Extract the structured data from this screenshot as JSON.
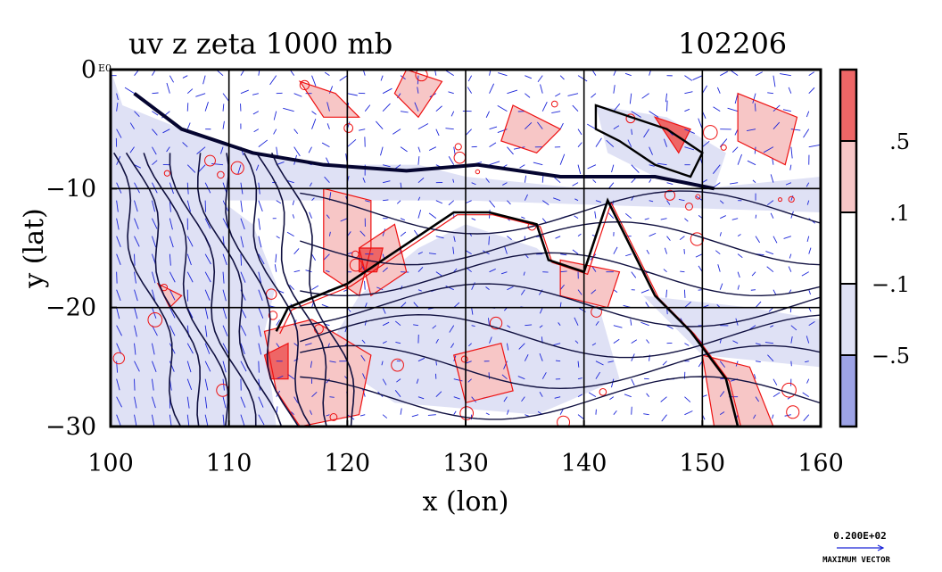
{
  "header": {
    "title": "uv z zeta 1000 mb",
    "code": "102206"
  },
  "chart_data": {
    "type": "heatmap",
    "title": "uv z zeta 1000 mb",
    "time_code": "102206",
    "xlabel": "x (lon)",
    "ylabel": "y (lat)",
    "xlim": [
      100,
      160
    ],
    "ylim": [
      -30,
      0
    ],
    "x_ticks": [
      100,
      110,
      120,
      130,
      140,
      150,
      160
    ],
    "y_ticks": [
      0,
      -10,
      -20,
      -30
    ],
    "x_tick_labels": [
      "100",
      "110",
      "120",
      "130",
      "140",
      "150",
      "160"
    ],
    "y_tick_labels": [
      "0",
      "−10",
      "−20",
      "−30"
    ],
    "y_top_label_suffix": "E0",
    "grid": true,
    "colorbar": {
      "levels": [
        -0.5,
        -0.1,
        0.1,
        0.5
      ],
      "labels": [
        ".5",
        ".1",
        "−.1",
        "−.5"
      ],
      "colors": [
        "#ee6666",
        "#f7c6c6",
        "#ffffff",
        "#dfe1f5",
        "#9da3e6"
      ]
    },
    "series": [
      {
        "name": "",
        "kind": "geopotential height contours",
        "color": "#101040"
      },
      {
        "name": "",
        "kind": "vorticity contour",
        "color": "#ee1111"
      },
      {
        "name": "",
        "kind": "wind vectors",
        "color": "#1a24d8"
      }
    ],
    "reference_vector": {
      "value": "0.200E+02",
      "label": "MAXIMUM VECTOR"
    }
  }
}
